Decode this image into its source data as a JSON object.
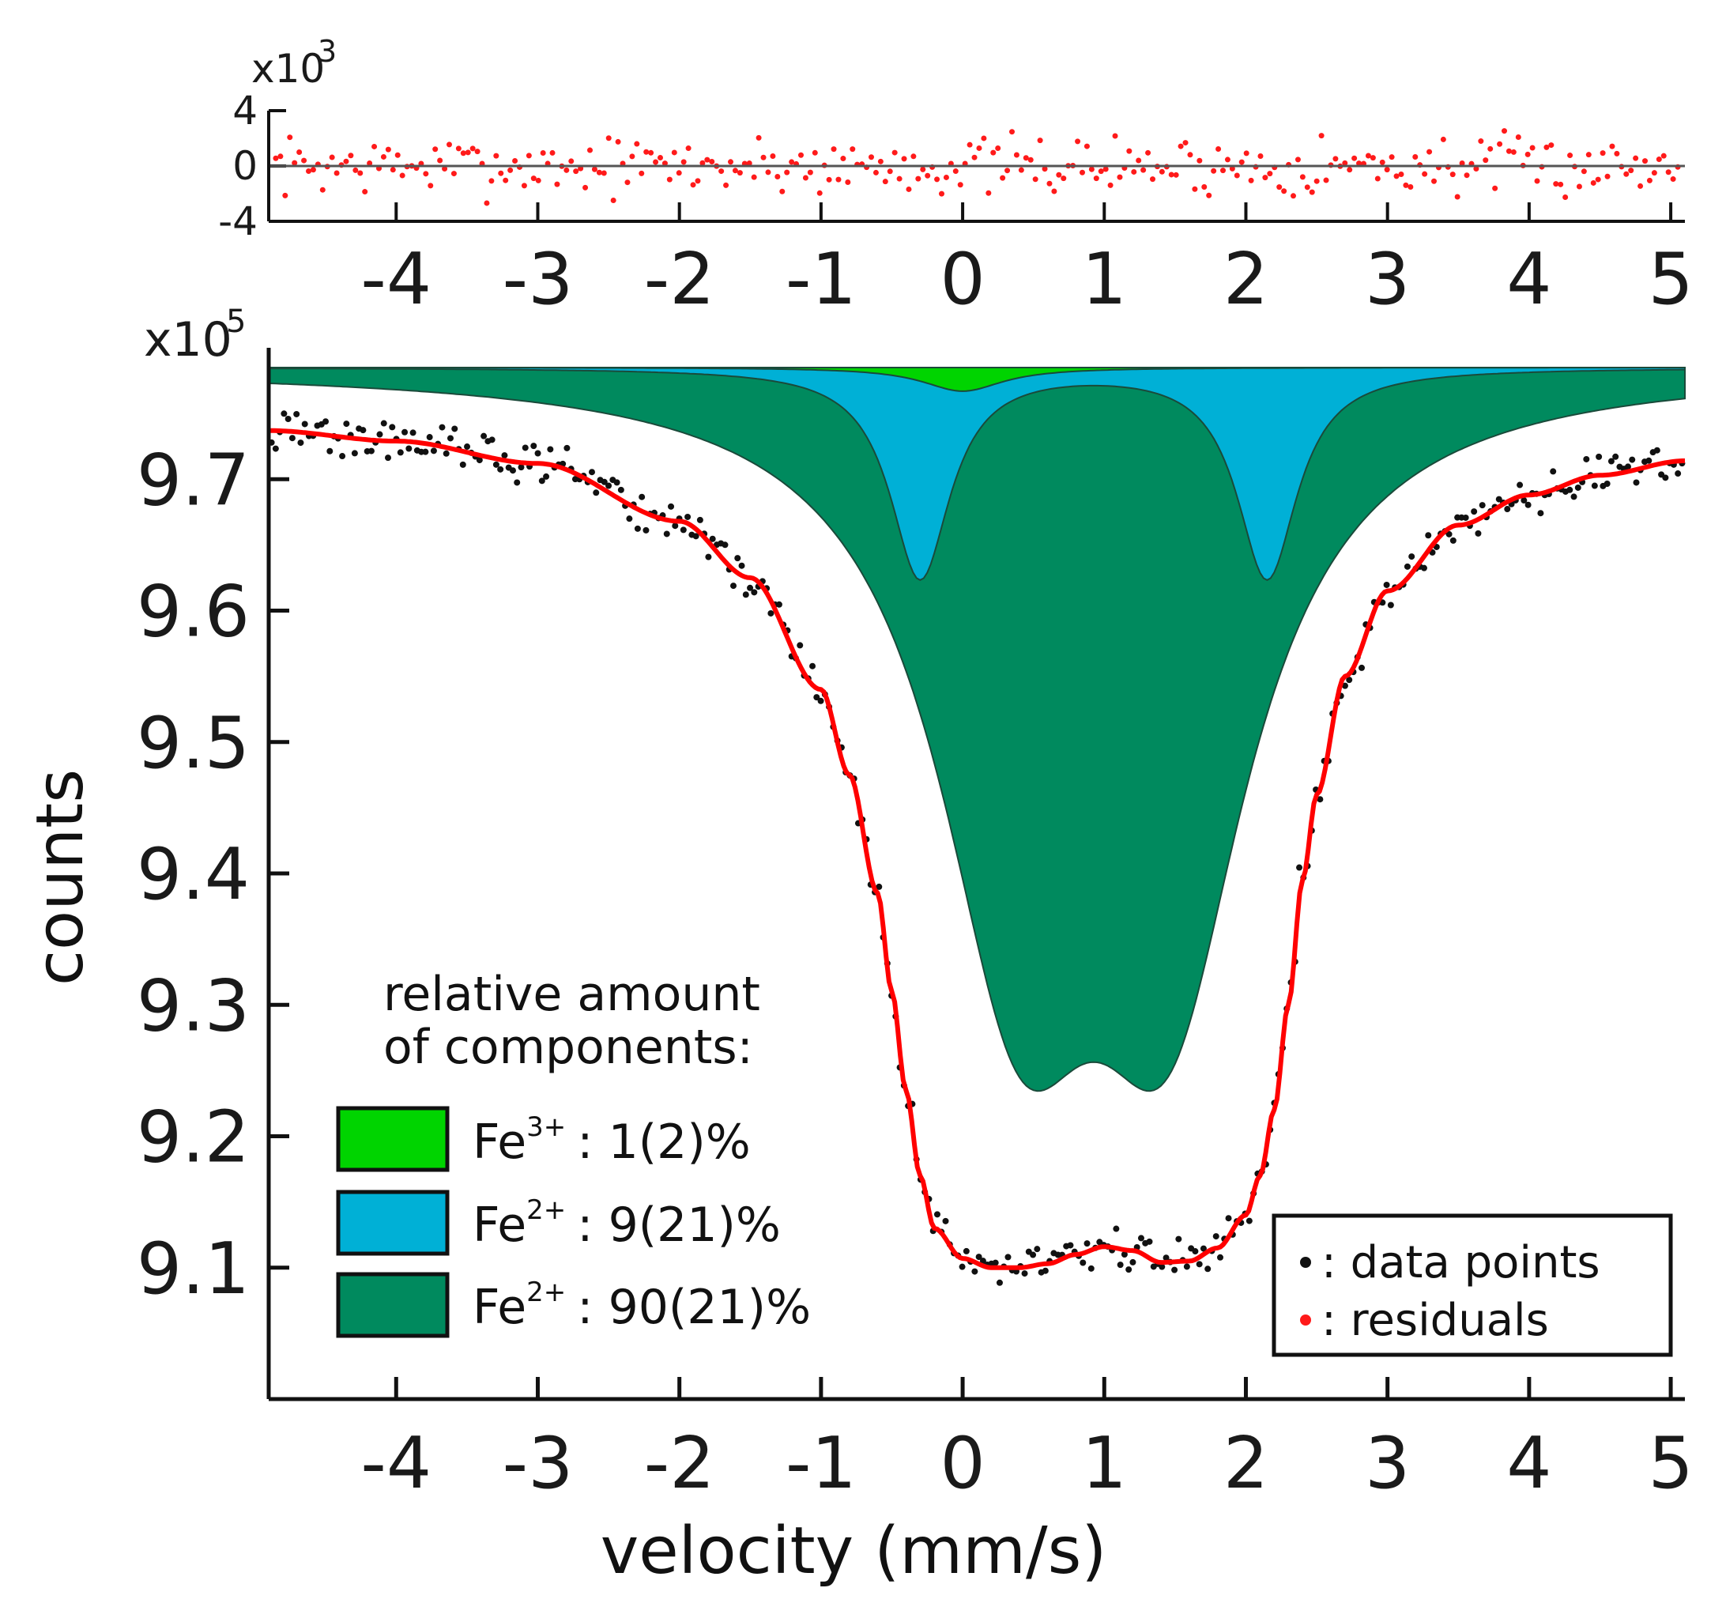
{
  "chart_data": [
    {
      "type": "scatter",
      "panel": "residuals",
      "multiplier": "x10",
      "multiplier_exp": "3",
      "xlim": [
        -4.9,
        5.1
      ],
      "ylim": [
        -4,
        4
      ],
      "xticks": [
        -4,
        -3,
        -2,
        -1,
        0,
        1,
        2,
        3,
        4,
        5
      ],
      "yticks": [
        4,
        0,
        -4
      ],
      "xtick_labels": [
        "-4",
        "-3",
        "-2",
        "-1",
        "0",
        "1",
        "2",
        "3",
        "4",
        "5"
      ],
      "ytick_labels": [
        "4",
        "0",
        "-4"
      ],
      "zero_line": true,
      "point_color": "#ff1a1a",
      "residual_count": 300,
      "residual_amplitude": 1.5
    },
    {
      "type": "scatter",
      "panel": "spectrum",
      "multiplier": "x10",
      "multiplier_exp": "5",
      "xlabel": "velocity (mm/s)",
      "ylabel": "counts",
      "xlim": [
        -4.9,
        5.1
      ],
      "ylim": [
        9.0,
        9.8
      ],
      "xticks": [
        -4,
        -3,
        -2,
        -1,
        0,
        1,
        2,
        3,
        4,
        5
      ],
      "yticks": [
        9.1,
        9.2,
        9.3,
        9.4,
        9.5,
        9.6,
        9.7
      ],
      "xtick_labels": [
        "-4",
        "-3",
        "-2",
        "-1",
        "0",
        "1",
        "2",
        "3",
        "4",
        "5"
      ],
      "ytick_labels": [
        "9.1",
        "9.2",
        "9.3",
        "9.4",
        "9.5",
        "9.6",
        "9.7"
      ],
      "baseline": 9.785,
      "components": [
        {
          "name": "Fe3+ singlet",
          "color": "#00d400",
          "center": 0.0,
          "depth": 0.018,
          "hwhm": 0.35
        },
        {
          "name": "Fe2+ doublet (9%)",
          "color": "#00b0d6",
          "centers": [
            -0.3,
            2.15
          ],
          "depth": 0.16,
          "hwhm": 0.26
        },
        {
          "name": "Fe2+ doublet (90%)",
          "color": "#008a5e",
          "centers": [
            0.4,
            1.45
          ],
          "depth": 0.54,
          "hwhm": 0.7
        }
      ],
      "fit": {
        "color": "#ff0000",
        "x": [
          -4.9,
          -4.0,
          -3.0,
          -2.0,
          -1.5,
          -1.0,
          -0.8,
          -0.6,
          -0.5,
          -0.4,
          -0.3,
          -0.2,
          0.0,
          0.2,
          0.4,
          0.6,
          0.8,
          1.0,
          1.2,
          1.4,
          1.6,
          1.8,
          2.0,
          2.1,
          2.2,
          2.3,
          2.4,
          2.5,
          2.7,
          3.0,
          3.5,
          4.0,
          4.5,
          5.1
        ],
        "y": [
          9.737,
          9.729,
          9.712,
          9.668,
          9.625,
          9.54,
          9.475,
          9.385,
          9.31,
          9.235,
          9.17,
          9.13,
          9.107,
          9.1,
          9.1,
          9.103,
          9.11,
          9.116,
          9.113,
          9.104,
          9.105,
          9.115,
          9.14,
          9.17,
          9.22,
          9.3,
          9.395,
          9.46,
          9.55,
          9.615,
          9.665,
          9.688,
          9.703,
          9.714
        ]
      },
      "data_noise": 0.012,
      "data_count": 340,
      "legend_components": {
        "title_line1": "relative amount",
        "title_line2": "of components:",
        "items": [
          {
            "color": "#00d400",
            "ion": "Fe",
            "charge": "3+",
            "amount": ": 1(2)%"
          },
          {
            "color": "#00b0d6",
            "ion": "Fe",
            "charge": "2+",
            "amount": ": 9(21)%"
          },
          {
            "color": "#008a5e",
            "ion": "Fe",
            "charge": "2+",
            "amount": ": 90(21)%"
          }
        ]
      },
      "legend_markers": {
        "items": [
          {
            "color": "#111111",
            "label": ": data points"
          },
          {
            "color": "#ff1a1a",
            "label": ": residuals"
          }
        ]
      }
    }
  ]
}
